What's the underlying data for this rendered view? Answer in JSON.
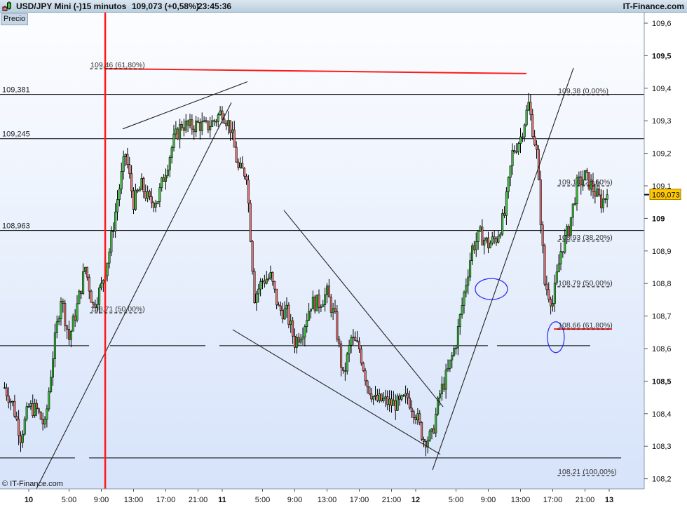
{
  "header": {
    "symbol": "USD/JPY Mini (-)",
    "timeframe": "15 minutos",
    "quote": "109,073 (+0,58%)",
    "time": "23:45:36",
    "brand": "IT-Finance.com"
  },
  "panel_label": "Precio",
  "copyright": "© IT-Finance.com",
  "colors": {
    "up": "#3cc83c",
    "down": "#e87474",
    "red_line": "#ff1a1a",
    "ellipse": "#2a2aee",
    "price_tag": "#ffc800"
  },
  "chart_data": {
    "type": "candlestick",
    "interval": "15 minutos",
    "ylim": [
      108.18,
      109.62
    ],
    "y_ticks": [
      {
        "value": 109.6,
        "label": "109,6",
        "bold": false
      },
      {
        "value": 109.5,
        "label": "109,5",
        "bold": true
      },
      {
        "value": 109.4,
        "label": "109,4",
        "bold": false
      },
      {
        "value": 109.3,
        "label": "109,3",
        "bold": false
      },
      {
        "value": 109.2,
        "label": "109,2",
        "bold": false
      },
      {
        "value": 109.1,
        "label": "109,1",
        "bold": false
      },
      {
        "value": 109.0,
        "label": "109",
        "bold": true
      },
      {
        "value": 108.9,
        "label": "108,9",
        "bold": false
      },
      {
        "value": 108.8,
        "label": "108,8",
        "bold": false
      },
      {
        "value": 108.7,
        "label": "108,7",
        "bold": false
      },
      {
        "value": 108.6,
        "label": "108,6",
        "bold": false
      },
      {
        "value": 108.5,
        "label": "108,5",
        "bold": true
      },
      {
        "value": 108.4,
        "label": "108,4",
        "bold": false
      },
      {
        "value": 108.3,
        "label": "108,3",
        "bold": false
      },
      {
        "value": 108.2,
        "label": "108,2",
        "bold": false
      }
    ],
    "x_ticks": [
      {
        "time": "10 00:00",
        "label": "10",
        "day": true
      },
      {
        "time": "10 05:00",
        "label": "5:00",
        "day": false
      },
      {
        "time": "10 09:00",
        "label": "9:00",
        "day": false
      },
      {
        "time": "10 13:00",
        "label": "13:00",
        "day": false
      },
      {
        "time": "10 17:00",
        "label": "17:00",
        "day": false
      },
      {
        "time": "10 21:00",
        "label": "21:00",
        "day": false
      },
      {
        "time": "11 00:00",
        "label": "11",
        "day": true
      },
      {
        "time": "11 05:00",
        "label": "5:00",
        "day": false
      },
      {
        "time": "11 09:00",
        "label": "9:00",
        "day": false
      },
      {
        "time": "11 13:00",
        "label": "13:00",
        "day": false
      },
      {
        "time": "11 17:00",
        "label": "17:00",
        "day": false
      },
      {
        "time": "11 21:00",
        "label": "21:00",
        "day": false
      },
      {
        "time": "12 00:00",
        "label": "12",
        "day": true
      },
      {
        "time": "12 05:00",
        "label": "5:00",
        "day": false
      },
      {
        "time": "12 09:00",
        "label": "9:00",
        "day": false
      },
      {
        "time": "12 13:00",
        "label": "13:00",
        "day": false
      },
      {
        "time": "12 17:00",
        "label": "17:00",
        "day": false
      },
      {
        "time": "12 21:00",
        "label": "21:00",
        "day": false
      },
      {
        "time": "13 00:00",
        "label": "13",
        "day": true
      }
    ],
    "last_price": {
      "value": 109.073,
      "label": "109,073"
    },
    "close_series": [
      [
        "9 21:00",
        108.48
      ],
      [
        "9 22:00",
        108.43
      ],
      [
        "9 23:00",
        108.33
      ],
      [
        "10 00:00",
        108.42
      ],
      [
        "10 01:00",
        108.41
      ],
      [
        "10 02:00",
        108.36
      ],
      [
        "10 03:00",
        108.58
      ],
      [
        "10 04:00",
        108.76
      ],
      [
        "10 05:00",
        108.63
      ],
      [
        "10 06:00",
        108.73
      ],
      [
        "10 07:00",
        108.85
      ],
      [
        "10 08:00",
        108.73
      ],
      [
        "10 09:00",
        108.79
      ],
      [
        "10 10:00",
        108.9
      ],
      [
        "10 11:00",
        109.06
      ],
      [
        "10 12:00",
        109.2
      ],
      [
        "10 13:00",
        109.05
      ],
      [
        "10 14:00",
        109.1
      ],
      [
        "10 15:00",
        109.05
      ],
      [
        "10 16:00",
        109.06
      ],
      [
        "10 17:00",
        109.15
      ],
      [
        "10 18:00",
        109.24
      ],
      [
        "10 19:00",
        109.29
      ],
      [
        "10 20:00",
        109.28
      ],
      [
        "10 21:00",
        109.29
      ],
      [
        "10 22:00",
        109.28
      ],
      [
        "10 23:00",
        109.3
      ],
      [
        "11 00:00",
        109.33
      ],
      [
        "11 01:00",
        109.28
      ],
      [
        "11 02:00",
        109.15
      ],
      [
        "11 03:00",
        109.14
      ],
      [
        "11 04:00",
        108.76
      ],
      [
        "11 05:00",
        108.81
      ],
      [
        "11 06:00",
        108.82
      ],
      [
        "11 07:00",
        108.72
      ],
      [
        "11 08:00",
        108.71
      ],
      [
        "11 09:00",
        108.62
      ],
      [
        "11 10:00",
        108.66
      ],
      [
        "11 11:00",
        108.74
      ],
      [
        "11 12:00",
        108.74
      ],
      [
        "11 13:00",
        108.77
      ],
      [
        "11 14:00",
        108.69
      ],
      [
        "11 15:00",
        108.51
      ],
      [
        "11 16:00",
        108.63
      ],
      [
        "11 17:00",
        108.6
      ],
      [
        "11 18:00",
        108.49
      ],
      [
        "11 19:00",
        108.44
      ],
      [
        "11 20:00",
        108.44
      ],
      [
        "11 21:00",
        108.43
      ],
      [
        "11 22:00",
        108.43
      ],
      [
        "11 23:00",
        108.45
      ],
      [
        "12 00:00",
        108.4
      ],
      [
        "12 01:00",
        108.32
      ],
      [
        "12 02:00",
        108.33
      ],
      [
        "12 03:00",
        108.46
      ],
      [
        "12 04:00",
        108.53
      ],
      [
        "12 05:00",
        108.62
      ],
      [
        "12 06:00",
        108.77
      ],
      [
        "12 07:00",
        108.91
      ],
      [
        "12 08:00",
        108.95
      ],
      [
        "12 09:00",
        108.92
      ],
      [
        "12 10:00",
        108.94
      ],
      [
        "12 11:00",
        109.01
      ],
      [
        "12 12:00",
        109.2
      ],
      [
        "12 13:00",
        109.25
      ],
      [
        "12 14:00",
        109.35
      ],
      [
        "12 15:00",
        109.2
      ],
      [
        "12 16:00",
        108.8
      ],
      [
        "12 17:00",
        108.74
      ],
      [
        "12 18:00",
        108.9
      ],
      [
        "12 19:00",
        108.97
      ],
      [
        "12 20:00",
        109.1
      ],
      [
        "12 21:00",
        109.13
      ],
      [
        "12 22:00",
        109.09
      ],
      [
        "12 23:00",
        109.05
      ],
      [
        "12 23:45",
        109.073
      ]
    ],
    "horizontal_levels": [
      {
        "value": 109.381,
        "label": "109,381"
      },
      {
        "value": 109.245,
        "label": "109,245"
      },
      {
        "value": 108.963,
        "label": "108,963"
      }
    ],
    "support_segments": [
      {
        "value": 108.609,
        "from": "9 20:26",
        "to": "10 07:29"
      },
      {
        "value": 108.609,
        "from": "10 10:05",
        "to": "10 21:55"
      },
      {
        "value": 108.609,
        "from": "10 23:39",
        "to": "12 08:57"
      },
      {
        "value": 108.609,
        "from": "12 10:05",
        "to": "12 21:39"
      },
      {
        "value": 108.264,
        "from": "9 20:26",
        "to": "10 05:44"
      },
      {
        "value": 108.264,
        "from": "10 07:29",
        "to": "13 01:29"
      }
    ],
    "trendlines": [
      {
        "from": [
          "10 11:39",
          109.275
        ],
        "to": [
          "11 03:08",
          109.42
        ]
      },
      {
        "from": [
          "10 00:57",
          108.169
        ],
        "to": [
          "11 01:08",
          109.356
        ]
      },
      {
        "from": [
          "11 01:18",
          108.658
        ],
        "to": [
          "12 03:03",
          108.275
        ]
      },
      {
        "from": [
          "11 07:39",
          109.025
        ],
        "to": [
          "12 03:24",
          108.421
        ]
      },
      {
        "from": [
          "12 02:05",
          108.227
        ],
        "to": [
          "12 19:34",
          109.462
        ]
      }
    ],
    "red_lines": [
      {
        "from": [
          "10 09:29",
          109.46
        ],
        "to": [
          "12 13:44",
          109.445
        ]
      },
      {
        "from": [
          "12 17:08",
          108.66
        ],
        "to": [
          "13 00:21",
          108.66
        ]
      }
    ],
    "red_vertical": "10 09:29",
    "ellipses": [
      {
        "center": [
          "12 09:23",
          108.783
        ]
      },
      {
        "center": [
          "12 17:23",
          108.635
        ]
      }
    ],
    "fib_labels": [
      {
        "time": "10 07:40",
        "value": 109.46,
        "label": "109,46 (61,80%)"
      },
      {
        "time": "10 07:40",
        "value": 108.71,
        "label": "108,71 (50,00%)"
      },
      {
        "time": "12 17:40",
        "value": 109.38,
        "label": "109,38 (0,00%)"
      },
      {
        "time": "12 17:40",
        "value": 109.1,
        "label": "109,10 (23,60%)"
      },
      {
        "time": "12 17:40",
        "value": 108.93,
        "label": "108,93 (38,20%)"
      },
      {
        "time": "12 17:40",
        "value": 108.79,
        "label": "108,79 (50,00%)"
      },
      {
        "time": "12 17:40",
        "value": 108.66,
        "label": "108,66 (61,80%)"
      },
      {
        "time": "12 17:40",
        "value": 108.21,
        "label": "108,21 (100,00%)"
      }
    ]
  }
}
